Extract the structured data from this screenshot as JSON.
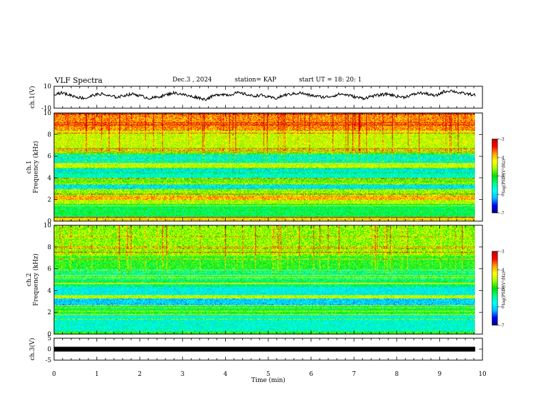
{
  "header": {
    "title": "VLF Spectra",
    "date": "Dec.3 , 2024",
    "station": "station= KAP",
    "start_ut": "start UT = 18: 20: 1"
  },
  "chart_data": [
    {
      "type": "line",
      "panel": "ch1-waveform",
      "ylabel": "ch.1(V)",
      "ylim": [
        -10,
        10
      ],
      "y_ticks": [
        "10",
        "-10"
      ],
      "xlim": [
        0,
        10
      ],
      "x_end": 9.83,
      "series": [
        {
          "values": [
            3,
            4,
            2,
            0,
            -1,
            2,
            3,
            1,
            0,
            2,
            3,
            1,
            -1,
            0,
            2,
            4,
            3,
            1,
            0,
            -2,
            1,
            3,
            2,
            4,
            3,
            1,
            2,
            0,
            -1,
            2,
            3,
            4,
            2,
            1,
            0,
            1,
            3,
            2,
            0,
            -1,
            1,
            2,
            3,
            1,
            0,
            2,
            4,
            3,
            1,
            5,
            6,
            4,
            3,
            2
          ]
        }
      ]
    },
    {
      "type": "heatmap",
      "panel": "ch1-spectrogram",
      "ylabel": "ch.1 Frequency (kHz)",
      "ylim": [
        0,
        10
      ],
      "y_ticks": [
        "0",
        "2",
        "4",
        "6",
        "8",
        "10"
      ],
      "xlim": [
        0,
        10
      ],
      "x_end": 9.83,
      "colorbar_label": "log(PSD)(V²/Hz)",
      "colorbar_range": [
        -7,
        -3
      ],
      "colorbar_ticks": [
        "-3",
        "-4",
        "-5",
        "-6",
        "-7"
      ],
      "description_bands_khz": [
        {
          "range": [
            0,
            0.4
          ],
          "level": -4.1
        },
        {
          "range": [
            0.4,
            1.6
          ],
          "level": -5.2
        },
        {
          "range": [
            1.6,
            2.0
          ],
          "level": -4.5
        },
        {
          "range": [
            2.0,
            2.4
          ],
          "level": -3.9
        },
        {
          "range": [
            2.4,
            3.0
          ],
          "level": -4.6
        },
        {
          "range": [
            3.0,
            3.4
          ],
          "level": -5.9
        },
        {
          "range": [
            3.4,
            4.0
          ],
          "level": -4.8
        },
        {
          "range": [
            4.0,
            4.4
          ],
          "level": -5.6
        },
        {
          "range": [
            4.4,
            5.0
          ],
          "level": -5.9
        },
        {
          "range": [
            5.0,
            5.4
          ],
          "level": -4.4
        },
        {
          "range": [
            5.4,
            6.2
          ],
          "level": -5.8
        },
        {
          "range": [
            6.2,
            6.8
          ],
          "level": -4.9
        },
        {
          "range": [
            6.8,
            8.4
          ],
          "level": -4.4
        },
        {
          "range": [
            8.4,
            10.0
          ],
          "level": -3.8
        }
      ]
    },
    {
      "type": "heatmap",
      "panel": "ch2-spectrogram",
      "ylabel": "ch.2 Frequency (kHz)",
      "ylim": [
        0,
        10
      ],
      "y_ticks": [
        "0",
        "2",
        "4",
        "6",
        "8",
        "10"
      ],
      "xlim": [
        0,
        10
      ],
      "x_end": 9.83,
      "colorbar_label": "log(PSD)(V²/Hz)",
      "colorbar_range": [
        -7,
        -3
      ],
      "colorbar_ticks": [
        "-3",
        "-4",
        "-5",
        "-6",
        "-7"
      ],
      "description_bands_khz": [
        {
          "range": [
            0,
            0.3
          ],
          "level": -5.0
        },
        {
          "range": [
            0.3,
            1.8
          ],
          "level": -5.7
        },
        {
          "range": [
            1.8,
            2.2
          ],
          "level": -5.0
        },
        {
          "range": [
            2.2,
            2.7
          ],
          "level": -5.2
        },
        {
          "range": [
            2.7,
            3.3
          ],
          "level": -6.0
        },
        {
          "range": [
            3.3,
            3.6
          ],
          "level": -4.4
        },
        {
          "range": [
            3.6,
            4.4
          ],
          "level": -5.8
        },
        {
          "range": [
            4.4,
            5.0
          ],
          "level": -5.3
        },
        {
          "range": [
            5.0,
            6.0
          ],
          "level": -5.5
        },
        {
          "range": [
            6.0,
            7.2
          ],
          "level": -5.0
        },
        {
          "range": [
            7.2,
            8.0
          ],
          "level": -4.6
        },
        {
          "range": [
            8.0,
            10.0
          ],
          "level": -4.6
        }
      ]
    },
    {
      "type": "line",
      "panel": "ch3-waveform",
      "ylabel": "ch.3(V)",
      "ylim": [
        -5,
        5
      ],
      "y_ticks": [
        "5",
        "0",
        "-5"
      ],
      "xlim": [
        0,
        10
      ],
      "x_end": 9.83,
      "series": [
        {
          "values": [
            0,
            0
          ]
        }
      ]
    }
  ],
  "x_axis": {
    "label": "Time (min)",
    "ticks": [
      "0",
      "1",
      "2",
      "3",
      "4",
      "5",
      "6",
      "7",
      "8",
      "9",
      "10"
    ]
  },
  "colormap": [
    "#000080",
    "#0000ff",
    "#00c0ff",
    "#00ffff",
    "#00ff80",
    "#00e000",
    "#a0ff00",
    "#ffff00",
    "#ffa000",
    "#ff0000",
    "#c00000"
  ]
}
